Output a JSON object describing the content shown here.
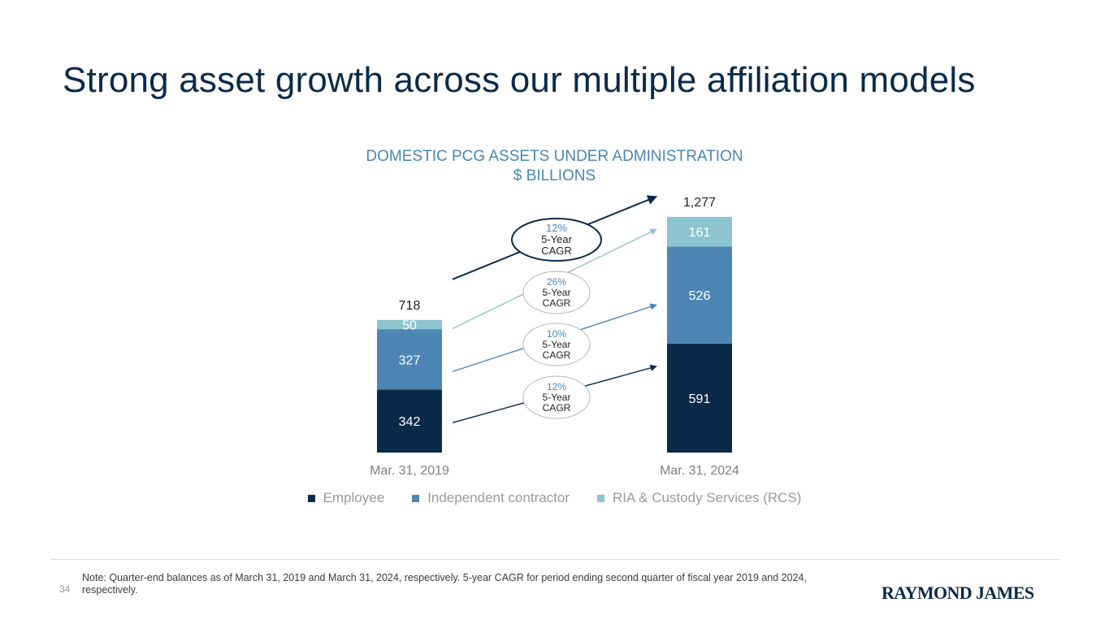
{
  "slide": {
    "title": "Strong asset growth across our multiple affiliation models",
    "page_number": "34",
    "footnote": "Note: Quarter-end balances as of March 31, 2019 and March 31, 2024, respectively. 5-year CAGR for period ending second quarter of fiscal year 2019 and 2024, respectively.",
    "brand": "RAYMOND JAMES"
  },
  "colors": {
    "title": "#0b2a4a",
    "employee": "#0b2a4a",
    "independent": "#4d86b5",
    "rcs": "#8ec3d0",
    "chart_title": "#4a86b4",
    "cagr_pct": "#4a86b4"
  },
  "chart_data": {
    "type": "bar",
    "stacked": true,
    "title": "DOMESTIC PCG ASSETS UNDER ADMINISTRATION",
    "subtitle": "$ BILLIONS",
    "categories": [
      "Mar. 31, 2019",
      "Mar. 31, 2024"
    ],
    "series": [
      {
        "name": "Employee",
        "values": [
          342,
          591
        ],
        "color": "#0b2a4a"
      },
      {
        "name": "Independent contractor",
        "values": [
          327,
          526
        ],
        "color": "#4d86b5"
      },
      {
        "name": "RIA & Custody Services (RCS)",
        "values": [
          50,
          161
        ],
        "color": "#8ec3d0"
      }
    ],
    "totals": [
      "718",
      "1,277"
    ],
    "cagr": [
      {
        "applies_to": "Total",
        "pct": "12%",
        "label": "5-Year\nCAGR"
      },
      {
        "applies_to": "RIA & Custody Services (RCS)",
        "pct": "26%",
        "label": "5-Year\nCAGR"
      },
      {
        "applies_to": "Independent contractor",
        "pct": "10%",
        "label": "5-Year\nCAGR"
      },
      {
        "applies_to": "Employee",
        "pct": "12%",
        "label": "5-Year\nCAGR"
      }
    ],
    "legend_position": "bottom",
    "grid": false
  }
}
